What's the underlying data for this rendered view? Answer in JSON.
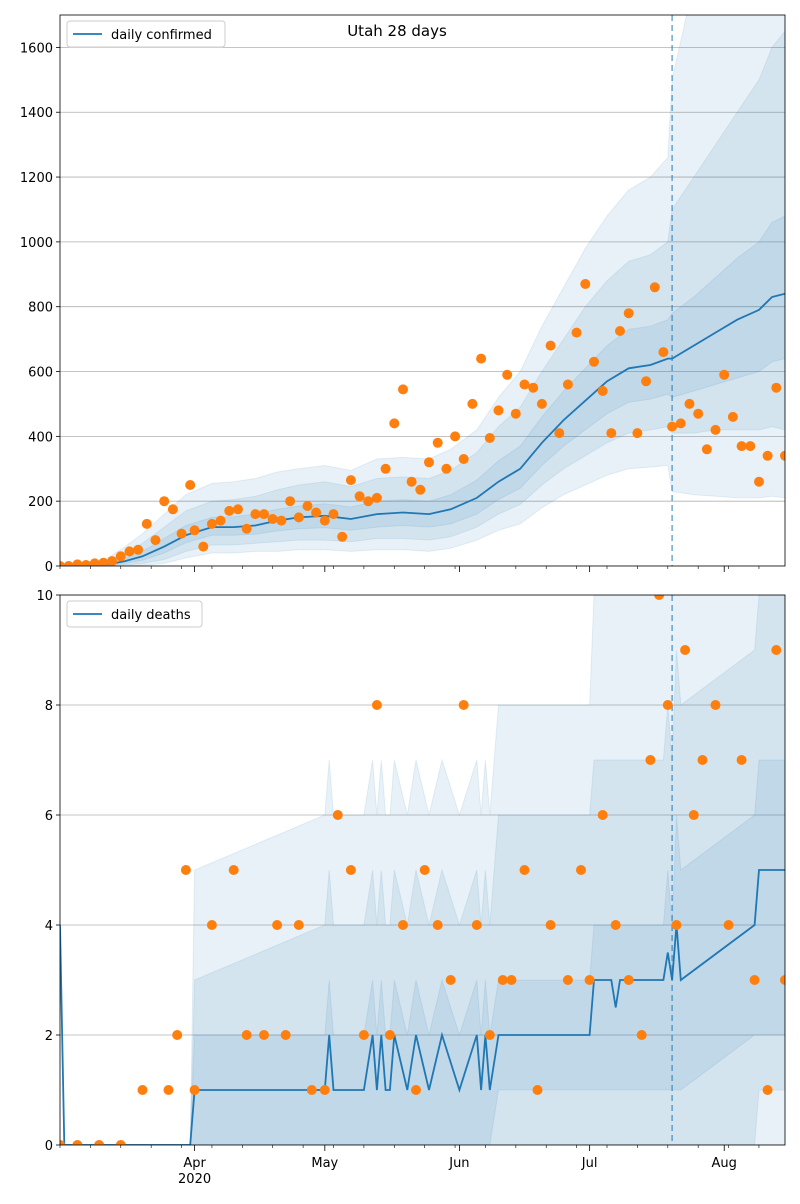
{
  "chart_data": [
    {
      "type": "line",
      "title": "Utah 28 days",
      "x_start": "2020-03-01",
      "x_end": "2020-08-15",
      "forecast_date": "2020-07-20",
      "ylim": [
        0,
        1700
      ],
      "yticks": [
        0,
        200,
        400,
        600,
        800,
        1000,
        1200,
        1400,
        1600
      ],
      "grid": true,
      "legend": "top-left",
      "colors": {
        "line": "#1f77b4",
        "points": "#ff7f0e",
        "band": "#1f77b4"
      },
      "series": [
        {
          "name": "daily confirmed",
          "dates": [
            "2020-03-01",
            "2020-03-07",
            "2020-03-12",
            "2020-03-16",
            "2020-03-20",
            "2020-03-25",
            "2020-03-30",
            "2020-04-05",
            "2020-04-10",
            "2020-04-15",
            "2020-04-20",
            "2020-04-25",
            "2020-05-01",
            "2020-05-07",
            "2020-05-13",
            "2020-05-19",
            "2020-05-25",
            "2020-05-30",
            "2020-06-05",
            "2020-06-10",
            "2020-06-15",
            "2020-06-20",
            "2020-06-25",
            "2020-06-30",
            "2020-07-05",
            "2020-07-10",
            "2020-07-15",
            "2020-07-19",
            "2020-07-20",
            "2020-07-25",
            "2020-07-30",
            "2020-08-04",
            "2020-08-09",
            "2020-08-12",
            "2020-08-15"
          ],
          "values": [
            0,
            0,
            5,
            15,
            30,
            60,
            95,
            120,
            120,
            125,
            140,
            150,
            155,
            145,
            160,
            165,
            160,
            175,
            210,
            260,
            300,
            380,
            450,
            510,
            570,
            610,
            620,
            640,
            640,
            680,
            720,
            760,
            790,
            830,
            840
          ]
        }
      ],
      "band_inner": {
        "lo": [
          0,
          0,
          2,
          8,
          18,
          40,
          72,
          95,
          95,
          98,
          108,
          115,
          118,
          110,
          120,
          125,
          120,
          130,
          160,
          205,
          240,
          310,
          370,
          420,
          470,
          505,
          515,
          530,
          520,
          540,
          560,
          580,
          600,
          630,
          640
        ],
        "hi": [
          0,
          0,
          8,
          24,
          45,
          85,
          125,
          150,
          152,
          160,
          175,
          185,
          192,
          182,
          200,
          205,
          200,
          220,
          265,
          325,
          370,
          460,
          540,
          610,
          680,
          730,
          740,
          760,
          780,
          830,
          890,
          950,
          1000,
          1060,
          1080
        ]
      },
      "band_outer": {
        "lo": [
          0,
          0,
          0,
          3,
          8,
          20,
          45,
          65,
          65,
          70,
          75,
          80,
          80,
          75,
          85,
          85,
          80,
          90,
          120,
          160,
          190,
          250,
          300,
          340,
          380,
          410,
          420,
          430,
          410,
          410,
          420,
          420,
          420,
          430,
          420
        ],
        "hi": [
          0,
          0,
          15,
          40,
          70,
          120,
          170,
          200,
          205,
          215,
          235,
          250,
          260,
          245,
          270,
          275,
          270,
          295,
          350,
          430,
          490,
          600,
          700,
          800,
          880,
          940,
          960,
          1000,
          1100,
          1200,
          1300,
          1400,
          1500,
          1600,
          1650
        ]
      },
      "band_outermost": {
        "lo": [
          0,
          0,
          0,
          0,
          2,
          8,
          25,
          40,
          40,
          45,
          45,
          50,
          50,
          45,
          50,
          50,
          45,
          55,
          80,
          110,
          130,
          180,
          220,
          250,
          280,
          300,
          305,
          310,
          230,
          220,
          215,
          210,
          210,
          215,
          210
        ],
        "hi": [
          0,
          0,
          25,
          60,
          100,
          160,
          220,
          255,
          260,
          270,
          290,
          300,
          310,
          295,
          330,
          335,
          330,
          360,
          420,
          520,
          600,
          740,
          860,
          980,
          1080,
          1160,
          1200,
          1260,
          1500,
          1800,
          2000,
          2200,
          2400,
          2500,
          2600
        ]
      },
      "points": {
        "dates": [
          "2020-03-01",
          "2020-03-03",
          "2020-03-05",
          "2020-03-07",
          "2020-03-09",
          "2020-03-11",
          "2020-03-13",
          "2020-03-15",
          "2020-03-17",
          "2020-03-19",
          "2020-03-21",
          "2020-03-23",
          "2020-03-25",
          "2020-03-27",
          "2020-03-29",
          "2020-03-31",
          "2020-04-01",
          "2020-04-03",
          "2020-04-05",
          "2020-04-07",
          "2020-04-09",
          "2020-04-11",
          "2020-04-13",
          "2020-04-15",
          "2020-04-17",
          "2020-04-19",
          "2020-04-21",
          "2020-04-23",
          "2020-04-25",
          "2020-04-27",
          "2020-04-29",
          "2020-05-01",
          "2020-05-03",
          "2020-05-05",
          "2020-05-07",
          "2020-05-09",
          "2020-05-11",
          "2020-05-13",
          "2020-05-15",
          "2020-05-17",
          "2020-05-19",
          "2020-05-21",
          "2020-05-23",
          "2020-05-25",
          "2020-05-27",
          "2020-05-29",
          "2020-05-31",
          "2020-06-02",
          "2020-06-04",
          "2020-06-06",
          "2020-06-08",
          "2020-06-10",
          "2020-06-12",
          "2020-06-14",
          "2020-06-16",
          "2020-06-18",
          "2020-06-20",
          "2020-06-22",
          "2020-06-24",
          "2020-06-26",
          "2020-06-28",
          "2020-06-30",
          "2020-07-02",
          "2020-07-04",
          "2020-07-06",
          "2020-07-08",
          "2020-07-10",
          "2020-07-12",
          "2020-07-14",
          "2020-07-16",
          "2020-07-18",
          "2020-07-20",
          "2020-07-22",
          "2020-07-24",
          "2020-07-26",
          "2020-07-28",
          "2020-07-30",
          "2020-08-01",
          "2020-08-03",
          "2020-08-05",
          "2020-08-07",
          "2020-08-09",
          "2020-08-11",
          "2020-08-13",
          "2020-08-15"
        ],
        "values": [
          0,
          0,
          5,
          3,
          8,
          10,
          15,
          30,
          45,
          50,
          130,
          80,
          200,
          175,
          100,
          250,
          110,
          60,
          130,
          140,
          170,
          175,
          115,
          160,
          160,
          145,
          140,
          200,
          150,
          185,
          165,
          140,
          160,
          90,
          265,
          215,
          200,
          210,
          300,
          440,
          545,
          260,
          235,
          320,
          380,
          300,
          400,
          330,
          500,
          640,
          395,
          480,
          590,
          470,
          560,
          550,
          500,
          680,
          410,
          560,
          720,
          870,
          630,
          540,
          410,
          725,
          780,
          410,
          570,
          860,
          660,
          430,
          440,
          500,
          470,
          360,
          420,
          590,
          460,
          370,
          370,
          260,
          340,
          550,
          340
        ]
      }
    },
    {
      "type": "line",
      "title": "",
      "x_start": "2020-03-01",
      "x_end": "2020-08-15",
      "forecast_date": "2020-07-20",
      "ylim": [
        0,
        10
      ],
      "yticks": [
        0,
        2,
        4,
        6,
        8,
        10
      ],
      "grid": true,
      "legend": "top-left",
      "xticks": [
        "Apr\n2020",
        "May",
        "Jun",
        "Jul",
        "Aug"
      ],
      "colors": {
        "line": "#1f77b4",
        "points": "#ff7f0e",
        "band": "#1f77b4"
      },
      "series": [
        {
          "name": "daily deaths",
          "dates": [
            "2020-03-01",
            "2020-03-02",
            "2020-03-31",
            "2020-04-01",
            "2020-05-01",
            "2020-05-02",
            "2020-05-03",
            "2020-05-10",
            "2020-05-12",
            "2020-05-13",
            "2020-05-14",
            "2020-05-15",
            "2020-05-16",
            "2020-05-17",
            "2020-05-20",
            "2020-05-22",
            "2020-05-25",
            "2020-05-28",
            "2020-06-01",
            "2020-06-05",
            "2020-06-06",
            "2020-06-07",
            "2020-06-08",
            "2020-06-10",
            "2020-06-11",
            "2020-07-01",
            "2020-07-02",
            "2020-07-06",
            "2020-07-07",
            "2020-07-08",
            "2020-07-18",
            "2020-07-19",
            "2020-07-20",
            "2020-07-21",
            "2020-07-22",
            "2020-08-08",
            "2020-08-09",
            "2020-08-15"
          ],
          "values": [
            4,
            0,
            0,
            1,
            1,
            2,
            1,
            1,
            2,
            1,
            2,
            1,
            1,
            2,
            1,
            2,
            1,
            2,
            1,
            2,
            1,
            2,
            1,
            2,
            2,
            2,
            3,
            3,
            2.5,
            3,
            3,
            3.5,
            3,
            4,
            3,
            4,
            5,
            5
          ]
        }
      ],
      "band_inner": {
        "lo": [
          0,
          0,
          0,
          0,
          0,
          0,
          0,
          0,
          0,
          0,
          0,
          0,
          0,
          0,
          0,
          0,
          0,
          0,
          0,
          0,
          0,
          0,
          0,
          1,
          1,
          1,
          1,
          1,
          1,
          1,
          1,
          1,
          1,
          1,
          1,
          2,
          2,
          2
        ],
        "hi": [
          0,
          0,
          0,
          2,
          2,
          3,
          2,
          2,
          3,
          2,
          3,
          2,
          2,
          3,
          2,
          3,
          2,
          3,
          2,
          3,
          2,
          3,
          2,
          3,
          3,
          3,
          4,
          4,
          4,
          4,
          4,
          5,
          4,
          6,
          5,
          6,
          7,
          7
        ]
      },
      "band_outer": {
        "lo": [
          0,
          0,
          0,
          0,
          0,
          0,
          0,
          0,
          0,
          0,
          0,
          0,
          0,
          0,
          0,
          0,
          0,
          0,
          0,
          0,
          0,
          0,
          0,
          0,
          0,
          0,
          0,
          0,
          0,
          0,
          0,
          0,
          0,
          0,
          0,
          0,
          1,
          1
        ],
        "hi": [
          0,
          0,
          0,
          3,
          4,
          5,
          4,
          4,
          5,
          4,
          5,
          4,
          4,
          5,
          4,
          5,
          4,
          5,
          4,
          5,
          4,
          5,
          4,
          6,
          6,
          6,
          7,
          7,
          7,
          7,
          7,
          8,
          7,
          9,
          8,
          9,
          10,
          10
        ]
      },
      "band_outermost": {
        "lo": [
          0,
          0,
          0,
          0,
          0,
          0,
          0,
          0,
          0,
          0,
          0,
          0,
          0,
          0,
          0,
          0,
          0,
          0,
          0,
          0,
          0,
          0,
          0,
          0,
          0,
          0,
          0,
          0,
          0,
          0,
          0,
          0,
          0,
          0,
          0,
          0,
          0,
          0
        ],
        "hi": [
          0,
          0,
          0,
          5,
          6,
          7,
          6,
          6,
          7,
          6,
          7,
          6,
          6,
          7,
          6,
          7,
          6,
          7,
          6,
          7,
          6,
          7,
          6,
          8,
          8,
          8,
          10,
          10,
          10,
          10,
          10,
          12,
          10,
          13,
          12,
          13,
          14,
          14
        ]
      },
      "points": {
        "dates": [
          "2020-03-01",
          "2020-03-05",
          "2020-03-10",
          "2020-03-15",
          "2020-03-20",
          "2020-03-26",
          "2020-03-28",
          "2020-03-30",
          "2020-04-01",
          "2020-04-05",
          "2020-04-10",
          "2020-04-13",
          "2020-04-17",
          "2020-04-20",
          "2020-04-22",
          "2020-04-25",
          "2020-04-28",
          "2020-05-01",
          "2020-05-04",
          "2020-05-07",
          "2020-05-10",
          "2020-05-13",
          "2020-05-16",
          "2020-05-19",
          "2020-05-22",
          "2020-05-24",
          "2020-05-27",
          "2020-05-30",
          "2020-06-02",
          "2020-06-05",
          "2020-06-08",
          "2020-06-11",
          "2020-06-13",
          "2020-06-16",
          "2020-06-19",
          "2020-06-22",
          "2020-06-26",
          "2020-06-29",
          "2020-07-01",
          "2020-07-04",
          "2020-07-07",
          "2020-07-10",
          "2020-07-13",
          "2020-07-15",
          "2020-07-17",
          "2020-07-19",
          "2020-07-21",
          "2020-07-23",
          "2020-07-25",
          "2020-07-27",
          "2020-07-30",
          "2020-08-02",
          "2020-08-05",
          "2020-08-08",
          "2020-08-11",
          "2020-08-13",
          "2020-08-15"
        ],
        "values": [
          0,
          0,
          0,
          0,
          1,
          1,
          2,
          5,
          1,
          4,
          5,
          2,
          2,
          4,
          2,
          4,
          1,
          1,
          6,
          5,
          2,
          8,
          2,
          4,
          1,
          5,
          4,
          3,
          8,
          4,
          2,
          3,
          3,
          5,
          1,
          4,
          3,
          5,
          3,
          6,
          4,
          3,
          2,
          7,
          10,
          8,
          4,
          9,
          6,
          7,
          8,
          4,
          7,
          3,
          1,
          9,
          3
        ]
      }
    }
  ]
}
